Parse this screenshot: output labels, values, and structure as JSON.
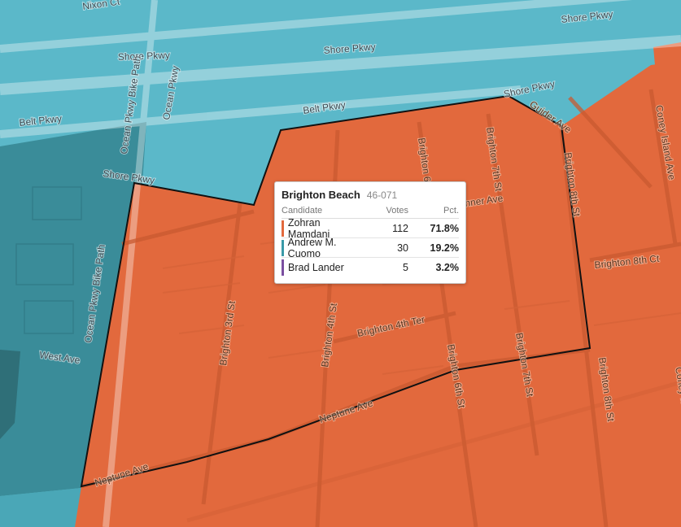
{
  "colors": {
    "water_teal": "#5bb8c9",
    "dark_teal": "#3a8c99",
    "mamdani_orange": "#e2693d",
    "cuomo_teal": "#3a9aa8",
    "lander_purple": "#7b4fa0"
  },
  "streets": {
    "nixon_ct": "Nixon Ct",
    "shore_pkwy_1": "Shore Pkwy",
    "shore_pkwy_2": "Shore Pkwy",
    "shore_pkwy_3": "Shore Pkwy",
    "shore_pkwy_4": "Shore Pkwy",
    "shore_pkwy_5": "Shore Pkwy",
    "belt_pkwy_1": "Belt Pkwy",
    "belt_pkwy_2": "Belt Pkwy",
    "ocean_pkwy": "Ocean Pkwy",
    "ocean_pkwy_bike_path_1": "Ocean Pkwy Bike Path",
    "ocean_pkwy_bike_path_2": "Ocean Pkwy Bike Path",
    "guider_ave": "Guider Ave",
    "coney_island_ave_1": "Coney Island Ave",
    "coney_island_ave_2": "Coney Island Ave",
    "brighton_6": "Brighton 6",
    "brighton_7th_st_1": "Brighton 7th St",
    "brighton_7th_st_2": "Brighton 7th St",
    "brighton_8th_st_1": "Brighton 8th St",
    "brighton_8th_st_2": "Brighton 8th St",
    "brighton_8th_ct": "Brighton 8th Ct",
    "brighton_3rd_st": "Brighton 3rd St",
    "brighton_4th_st": "Brighton 4th St",
    "brighton_4th_ter": "Brighton 4th Ter",
    "brighton_6th_st": "Brighton 6th St",
    "banner_ave": "nner Ave",
    "west_ave": "West Ave",
    "neptune_ave_1": "Neptune Ave",
    "neptune_ave_2": "Neptune Ave"
  },
  "tooltip": {
    "title": "Brighton Beach",
    "district_id": "46-071",
    "columns": {
      "candidate": "Candidate",
      "votes": "Votes",
      "pct": "Pct."
    },
    "rows": [
      {
        "name": "Zohran Mamdani",
        "votes": "112",
        "pct": "71.8%",
        "color": "#e2693d"
      },
      {
        "name": "Andrew M. Cuomo",
        "votes": "30",
        "pct": "19.2%",
        "color": "#3a9aa8"
      },
      {
        "name": "Brad Lander",
        "votes": "5",
        "pct": "3.2%",
        "color": "#7b4fa0"
      }
    ]
  }
}
